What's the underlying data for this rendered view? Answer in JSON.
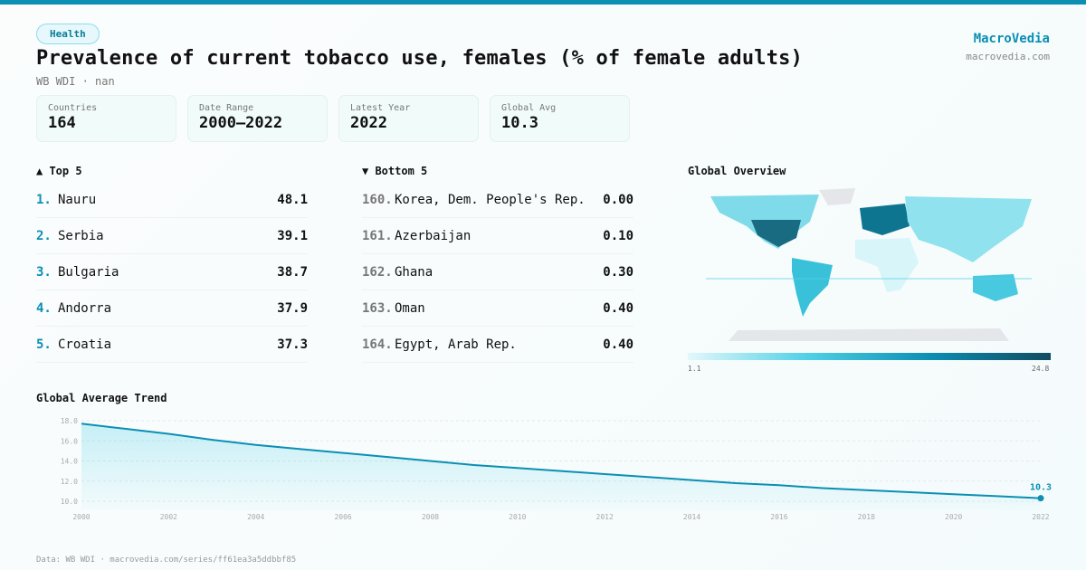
{
  "category": "Health",
  "title": "Prevalence of current tobacco use, females (% of female adults)",
  "subtitle": "WB WDI · nan",
  "brand": {
    "name": "MacroVedia",
    "url": "macrovedia.com"
  },
  "stats": [
    {
      "label": "Countries",
      "value": "164"
    },
    {
      "label": "Date Range",
      "value": "2000–2022"
    },
    {
      "label": "Latest Year",
      "value": "2022"
    },
    {
      "label": "Global Avg",
      "value": "10.3"
    }
  ],
  "top5": {
    "title": "▲ Top 5",
    "items": [
      {
        "rank": "1.",
        "name": "Nauru",
        "value": "48.1"
      },
      {
        "rank": "2.",
        "name": "Serbia",
        "value": "39.1"
      },
      {
        "rank": "3.",
        "name": "Bulgaria",
        "value": "38.7"
      },
      {
        "rank": "4.",
        "name": "Andorra",
        "value": "37.9"
      },
      {
        "rank": "5.",
        "name": "Croatia",
        "value": "37.3"
      }
    ]
  },
  "bottom5": {
    "title": "▼ Bottom 5",
    "items": [
      {
        "rank": "160.",
        "name": "Korea, Dem. People's Rep.",
        "value": "0.00"
      },
      {
        "rank": "161.",
        "name": "Azerbaijan",
        "value": "0.10"
      },
      {
        "rank": "162.",
        "name": "Ghana",
        "value": "0.30"
      },
      {
        "rank": "163.",
        "name": "Oman",
        "value": "0.40"
      },
      {
        "rank": "164.",
        "name": "Egypt, Arab Rep.",
        "value": "0.40"
      }
    ]
  },
  "map": {
    "title": "Global Overview",
    "scale_min": "1.1",
    "scale_max": "24.8",
    "colors": [
      "#e3f8fb",
      "#4fd0e6",
      "#0b8fb3",
      "#124b60"
    ]
  },
  "footer": "Data: WB WDI · macrovedia.com/series/ff61ea3a5ddbbf85",
  "chart_data": {
    "type": "area",
    "title": "Global Average Trend",
    "x": [
      2000,
      2001,
      2002,
      2003,
      2004,
      2005,
      2006,
      2007,
      2008,
      2009,
      2010,
      2011,
      2012,
      2013,
      2014,
      2015,
      2016,
      2017,
      2018,
      2019,
      2020,
      2021,
      2022
    ],
    "values": [
      17.7,
      17.2,
      16.7,
      16.1,
      15.6,
      15.2,
      14.8,
      14.4,
      14.0,
      13.6,
      13.3,
      13.0,
      12.7,
      12.4,
      12.1,
      11.8,
      11.6,
      11.3,
      11.1,
      10.9,
      10.7,
      10.5,
      10.3
    ],
    "yticks": [
      "10.0",
      "12.0",
      "14.0",
      "16.0",
      "18.0"
    ],
    "xticks": [
      "2000",
      "2002",
      "2004",
      "2006",
      "2008",
      "2010",
      "2012",
      "2014",
      "2016",
      "2018",
      "2020",
      "2022"
    ],
    "ylim": [
      10,
      18
    ],
    "last_label": "10.3",
    "color": "#0b8fb3",
    "grid": true
  }
}
